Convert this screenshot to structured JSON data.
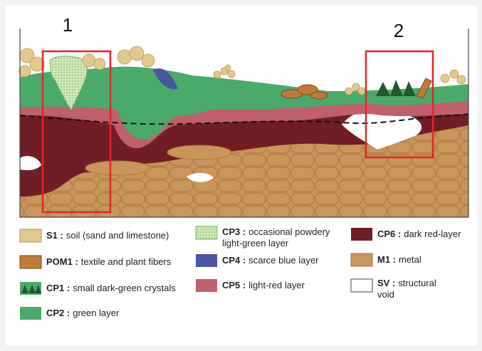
{
  "markers": [
    "1",
    "2"
  ],
  "legend": [
    {
      "code": "S1 :",
      "label": [
        "soil (sand and limestone)"
      ]
    },
    {
      "code": "POM1 :",
      "label": [
        "textile and plant fibers"
      ]
    },
    {
      "code": "CP1 :",
      "label": [
        "small dark-green crystals"
      ]
    },
    {
      "code": "CP2 :",
      "label": [
        "green layer"
      ]
    },
    {
      "code": "CP3 :",
      "label": [
        "occasional powdery",
        "light-green layer"
      ]
    },
    {
      "code": "CP4 :",
      "label": [
        "scarce blue layer"
      ]
    },
    {
      "code": "CP5 :",
      "label": [
        "light-red layer"
      ]
    },
    {
      "code": "CP6 :",
      "label": [
        "dark red-layer"
      ]
    },
    {
      "code": "M1 :",
      "label": [
        "metal"
      ]
    },
    {
      "code": "SV :",
      "label": [
        "structural",
        "void"
      ]
    }
  ]
}
